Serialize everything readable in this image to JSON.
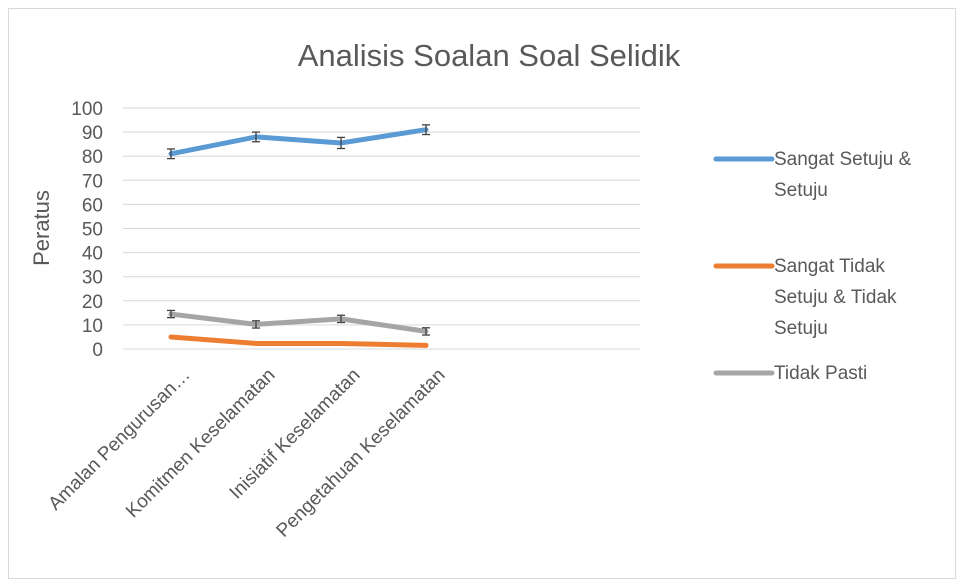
{
  "chart_data": {
    "type": "line",
    "title": "Analisis Soalan Soal Selidik",
    "ylabel": "Peratus",
    "xlabel": "",
    "ylim": [
      0,
      100
    ],
    "yticks": [
      0,
      10,
      20,
      30,
      40,
      50,
      60,
      70,
      80,
      90,
      100
    ],
    "grid": true,
    "legend_position": "right",
    "categories": [
      "Amalan Pengurusan…",
      "Komitmen Keselamatan",
      "Inisiatif Keselamatan",
      "Pengetahuan Keselamatan"
    ],
    "series": [
      {
        "name": "Sangat Setuju & Setuju",
        "legend_lines": [
          "Sangat Setuju &",
          "Setuju"
        ],
        "color": "#5b9bd5",
        "values": [
          81,
          88,
          85.5,
          91
        ],
        "error": [
          2,
          2,
          2.3,
          2
        ]
      },
      {
        "name": "Sangat Tidak Setuju & Tidak Setuju",
        "legend_lines": [
          "Sangat Tidak",
          "Setuju & Tidak",
          "Setuju"
        ],
        "color": "#ed7d31",
        "values": [
          5,
          2.3,
          2.3,
          1.5
        ],
        "error": [
          0,
          0,
          0,
          0
        ]
      },
      {
        "name": "Tidak Pasti",
        "legend_lines": [
          "Tidak Pasti"
        ],
        "color": "#a5a5a5",
        "values": [
          14.5,
          10.2,
          12.5,
          7.3
        ],
        "error": [
          1.5,
          1.5,
          1.5,
          1.5
        ]
      }
    ]
  }
}
